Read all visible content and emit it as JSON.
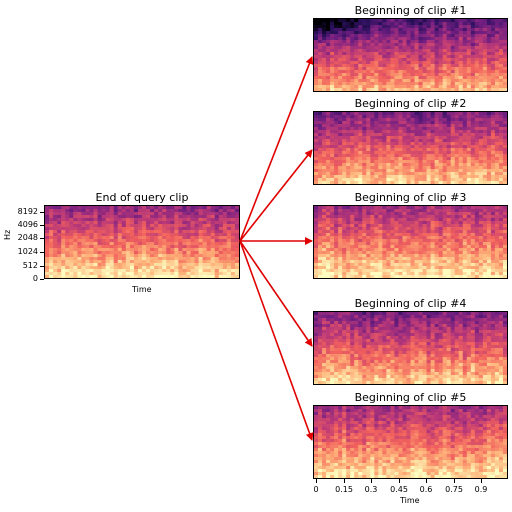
{
  "query_panel": {
    "title": "End of query clip",
    "xlabel": "Time",
    "ylabel": "Hz",
    "yticks": [
      "8192",
      "4096",
      "2048",
      "1024",
      "512",
      "0"
    ]
  },
  "clip_panels": [
    {
      "title": "Beginning of clip #1"
    },
    {
      "title": "Beginning of clip #2"
    },
    {
      "title": "Beginning of clip #3"
    },
    {
      "title": "Beginning of clip #4"
    },
    {
      "title": "Beginning of clip #5"
    }
  ],
  "bottom_axis": {
    "xlabel": "Time",
    "xticks": [
      "0",
      "0.15",
      "0.3",
      "0.45",
      "0.6",
      "0.75",
      "0.9"
    ]
  },
  "colors": {
    "arrow": "#e00000",
    "colormap": [
      "#000004",
      "#2c115f",
      "#721f81",
      "#b73779",
      "#f1605d",
      "#feb078",
      "#fcfdbf"
    ]
  }
}
